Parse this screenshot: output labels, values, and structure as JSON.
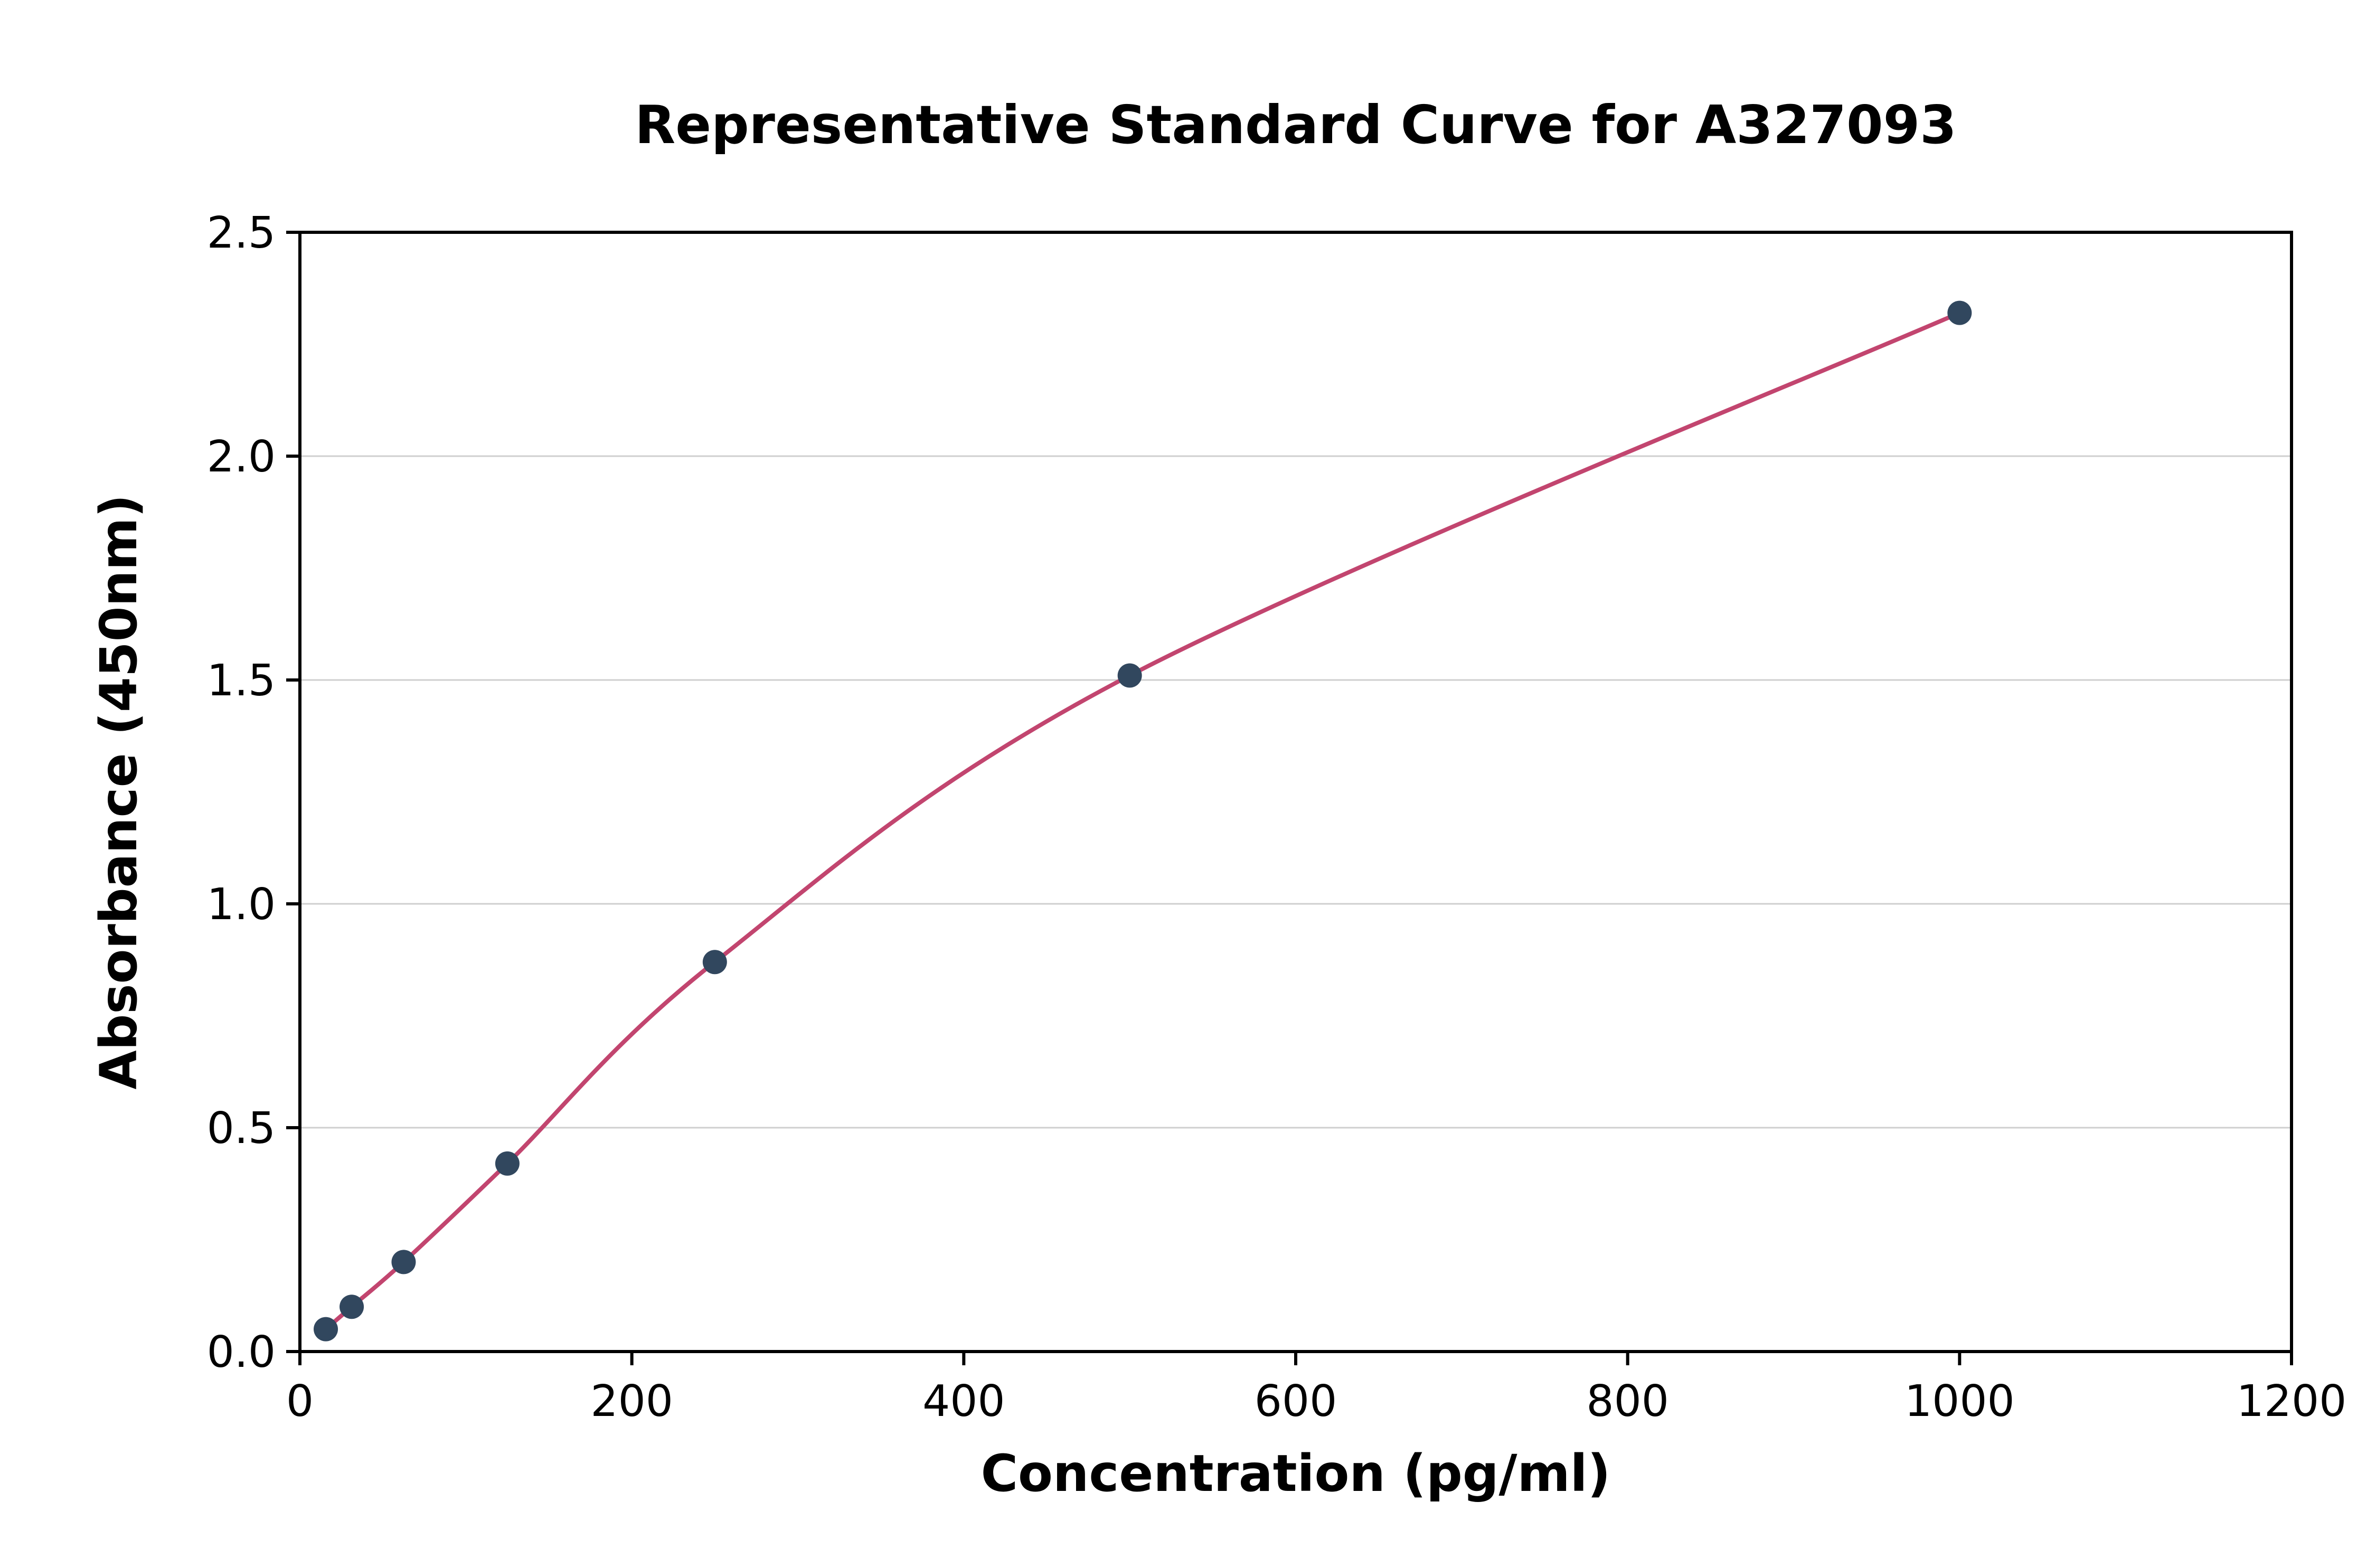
{
  "title": "Representative Standard Curve for A327093",
  "chart_data": {
    "type": "scatter",
    "title": "Representative Standard Curve for A327093",
    "xlabel": "Concentration (pg/ml)",
    "ylabel": "Absorbance (450nm)",
    "xlim": [
      0,
      1200
    ],
    "ylim": [
      0,
      2.5
    ],
    "x_ticks": [
      0,
      200,
      400,
      600,
      800,
      1000,
      1200
    ],
    "x_tick_labels": [
      "0",
      "200",
      "400",
      "600",
      "800",
      "1000",
      "1200"
    ],
    "y_ticks": [
      0,
      0.5,
      1.0,
      1.5,
      2.0,
      2.5
    ],
    "y_tick_labels": [
      "0.0",
      "0.5",
      "1.0",
      "1.5",
      "2.0",
      "2.5"
    ],
    "grid": "horizontal",
    "legend": "none",
    "points": [
      {
        "x": 15.6,
        "y": 0.05
      },
      {
        "x": 31.2,
        "y": 0.1
      },
      {
        "x": 62.5,
        "y": 0.2
      },
      {
        "x": 125,
        "y": 0.42
      },
      {
        "x": 250,
        "y": 0.87
      },
      {
        "x": 500,
        "y": 1.51
      },
      {
        "x": 1000,
        "y": 2.32
      }
    ],
    "curve_color": "#c2456f",
    "point_color": "#31475e",
    "grid_color": "#cfcfcf",
    "axis_color": "#000000"
  }
}
